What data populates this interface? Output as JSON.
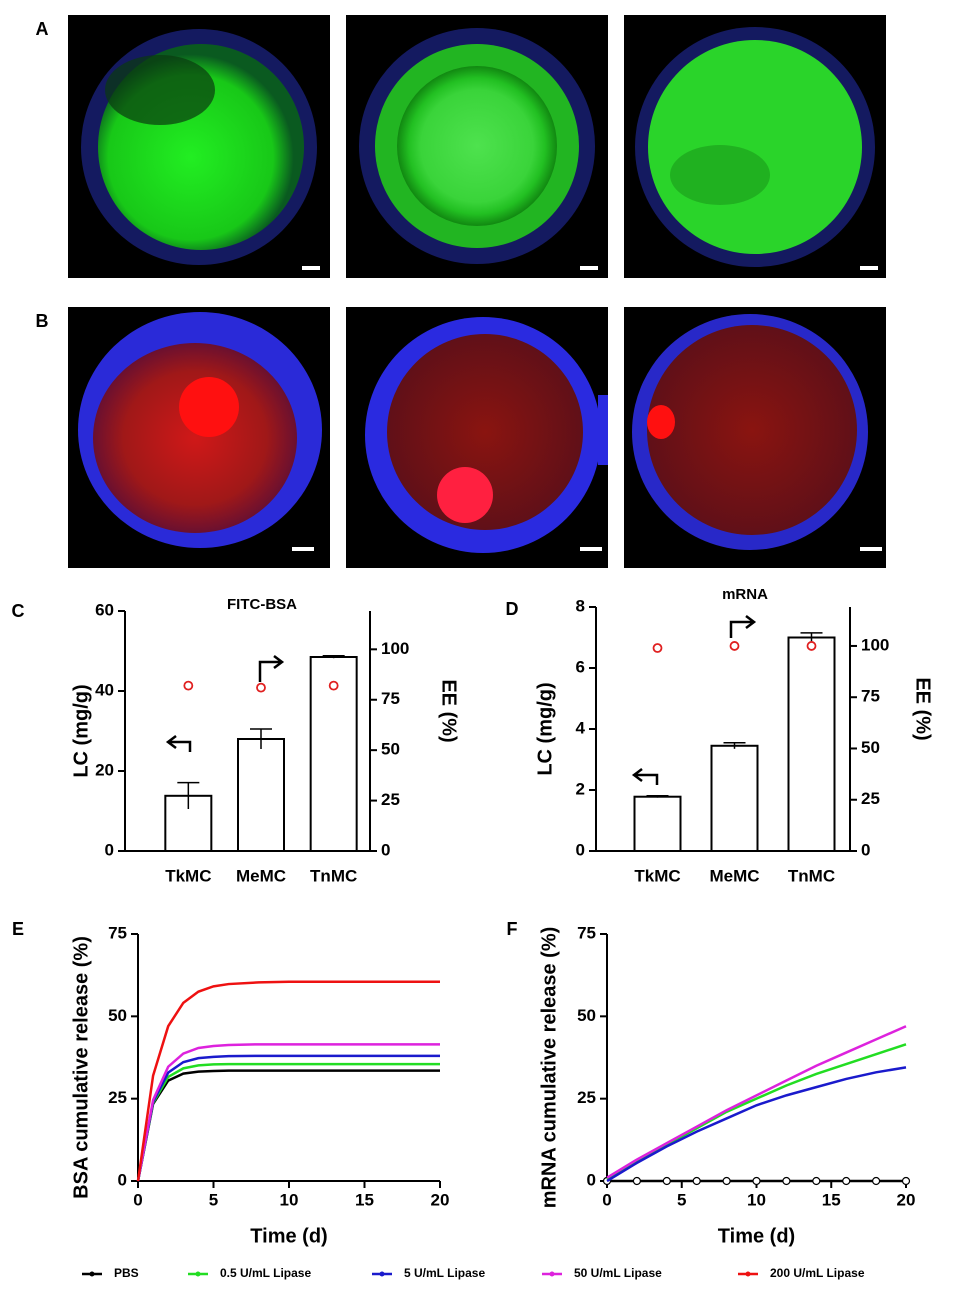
{
  "panel_labels": [
    "A",
    "B",
    "C",
    "D",
    "E",
    "F"
  ],
  "chart_data": [
    {
      "type": "bar",
      "title": "FITC-BSA",
      "y_label": "LC (mg/g)",
      "y2_label": "EE (%)",
      "categories": [
        "TkMC",
        "MeMC",
        "TnMC"
      ],
      "values": [
        13.8,
        28,
        48.5
      ],
      "errors": [
        3.3,
        2.5,
        0.3
      ],
      "y2_values": [
        82,
        81,
        82
      ],
      "color": "#ffffff",
      "y2_color": "#e02020",
      "ylim": [
        0,
        60
      ],
      "yticks": [
        0,
        20,
        40,
        60
      ],
      "y2lim": [
        0,
        119
      ],
      "y2ticks": [
        0,
        25,
        50,
        75,
        100
      ]
    },
    {
      "type": "bar",
      "title": "mRNA",
      "y_label": "LC (mg/g)",
      "y2_label": "EE (%)",
      "categories": [
        "TkMC",
        "MeMC",
        "TnMC"
      ],
      "values": [
        1.78,
        3.45,
        7.0
      ],
      "errors": [
        0.03,
        0.1,
        0.15
      ],
      "y2_values": [
        99,
        100,
        100
      ],
      "color": "#ffffff",
      "y2_color": "#e02020",
      "ylim": [
        0,
        8
      ],
      "yticks": [
        0,
        2,
        4,
        6,
        8
      ],
      "y2lim": [
        0,
        119
      ],
      "y2ticks": [
        0,
        25,
        50,
        75,
        100
      ]
    },
    {
      "type": "line",
      "x_label": "Time (d)",
      "y_label": "BSA cumulative release (%)",
      "legend": "bottom",
      "x": [
        0,
        1,
        2,
        3,
        4,
        5,
        6,
        8,
        10,
        12,
        15,
        20
      ],
      "series": [
        {
          "name": "PBS",
          "color": "#000000",
          "values": [
            0,
            23.4,
            30.5,
            32.6,
            33.2,
            33.4,
            33.5,
            33.5,
            33.5,
            33.5,
            33.5,
            33.5
          ]
        },
        {
          "name": "0.5 U/mL Lipase",
          "color": "#22dd22",
          "values": [
            0,
            23.7,
            31.6,
            34.2,
            35.1,
            35.4,
            35.5,
            35.5,
            35.5,
            35.5,
            35.5,
            35.5
          ]
        },
        {
          "name": "5 U/mL Lipase",
          "color": "#1a1acc",
          "values": [
            0,
            24,
            32.9,
            36.1,
            37.3,
            37.7,
            37.9,
            38,
            38,
            38,
            38,
            38
          ]
        },
        {
          "name": "50 U/mL Lipase",
          "color": "#dd22dd",
          "values": [
            0,
            24.6,
            34.7,
            38.7,
            40.4,
            41,
            41.3,
            41.5,
            41.5,
            41.5,
            41.5,
            41.5
          ]
        },
        {
          "name": "200 U/mL Lipase",
          "color": "#ee1111",
          "values": [
            0,
            32,
            47,
            54.1,
            57.5,
            59.1,
            59.8,
            60.3,
            60.5,
            60.5,
            60.5,
            60.5
          ]
        }
      ],
      "xlim": [
        0,
        20
      ],
      "xticks": [
        0,
        5,
        10,
        15,
        20
      ],
      "ylim": [
        0,
        75
      ],
      "yticks": [
        0,
        25,
        50,
        75
      ]
    },
    {
      "type": "line",
      "x_label": "Time (d)",
      "y_label": "mRNA cumulative release (%)",
      "x": [
        0,
        2,
        4,
        6,
        8,
        10,
        12,
        14,
        16,
        18,
        20
      ],
      "series": [
        {
          "color": "#000000",
          "values": [
            0,
            0,
            0,
            0,
            0,
            0,
            0,
            0,
            0,
            0,
            0
          ]
        },
        {
          "color": "#22dd22",
          "values": [
            0.5,
            6,
            11,
            16,
            21,
            25,
            29,
            32.5,
            35.5,
            38.5,
            41.5
          ]
        },
        {
          "color": "#1a1acc",
          "values": [
            0,
            5.5,
            10.5,
            15,
            19,
            23,
            26,
            28.5,
            31,
            33,
            34.5
          ]
        },
        {
          "color": "#dd22dd",
          "values": [
            1,
            6.5,
            11.5,
            16.5,
            21.5,
            26,
            30.5,
            35,
            39,
            43,
            47
          ]
        }
      ],
      "xlim": [
        0,
        20
      ],
      "xticks": [
        0,
        5,
        10,
        15,
        20
      ],
      "ylim": [
        0,
        75
      ],
      "yticks": [
        0,
        25,
        50,
        75
      ]
    }
  ]
}
